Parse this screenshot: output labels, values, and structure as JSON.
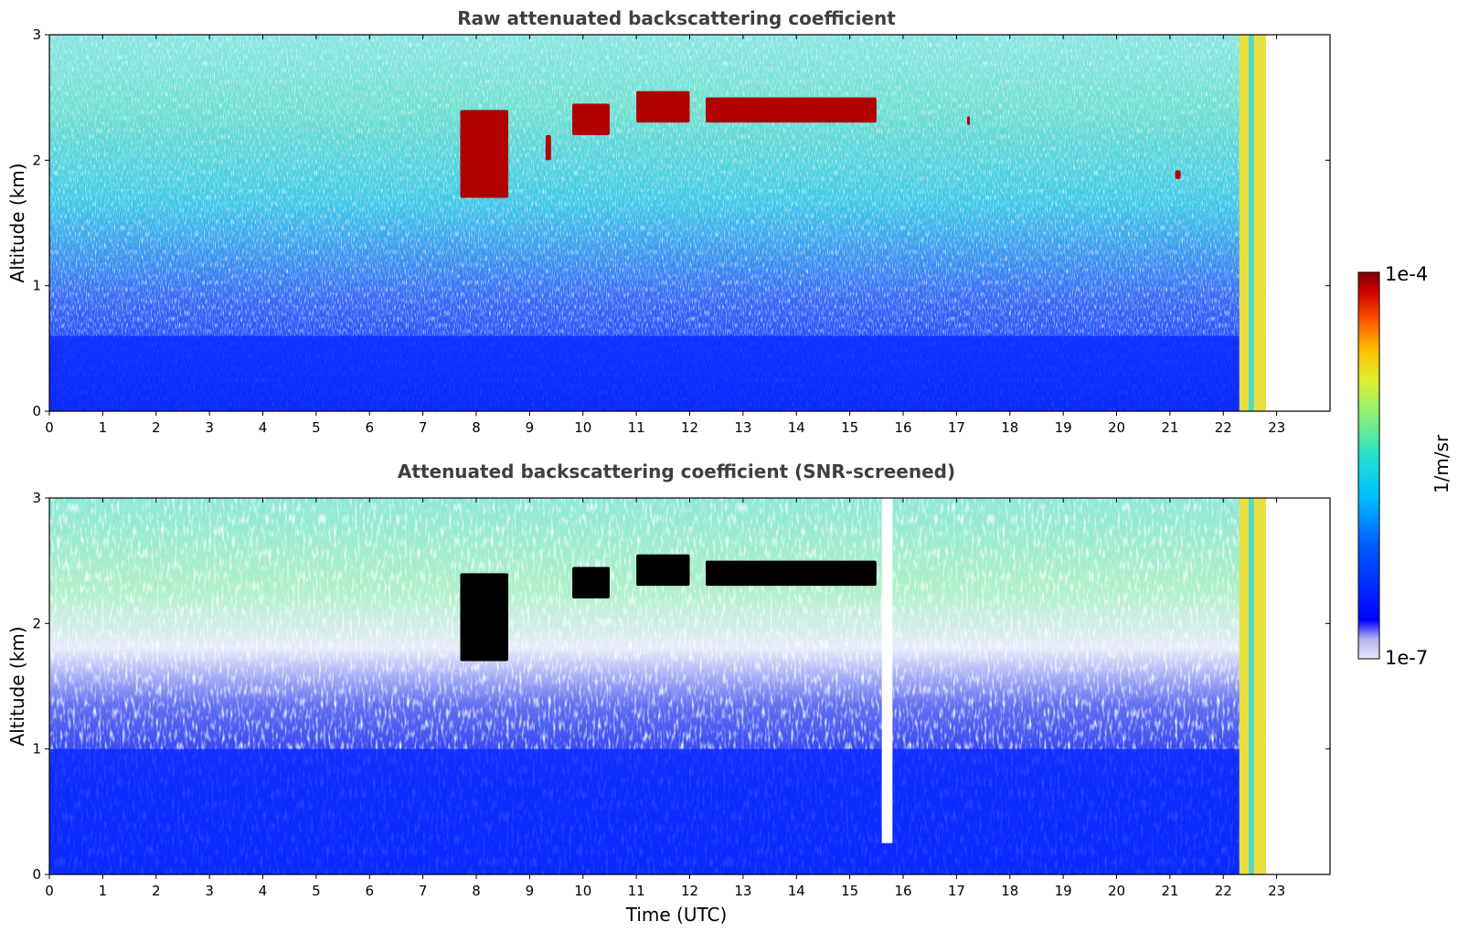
{
  "chart_data": [
    {
      "type": "heatmap",
      "title": "Raw attenuated backscattering coefficient",
      "xlabel": "",
      "ylabel": "Altitude (km)",
      "xlim": [
        0,
        24
      ],
      "ylim": [
        0,
        3
      ],
      "x_ticks": [
        "0",
        "1",
        "2",
        "3",
        "4",
        "5",
        "6",
        "7",
        "8",
        "9",
        "10",
        "11",
        "12",
        "13",
        "14",
        "15",
        "16",
        "17",
        "18",
        "19",
        "20",
        "21",
        "22",
        "23"
      ],
      "y_ticks": [
        "0",
        "1",
        "2",
        "3"
      ],
      "data_extent_hours": [
        0,
        22.8
      ],
      "regions": [
        {
          "feature": "aerosol boundary layer",
          "x": [
            0,
            22.8
          ],
          "y": [
            0,
            0.6
          ],
          "level": "low"
        },
        {
          "feature": "cloud",
          "x": [
            7.7,
            8.6
          ],
          "y": [
            1.7,
            2.4
          ],
          "level": "high"
        },
        {
          "feature": "cloud",
          "x": [
            9.3,
            9.4
          ],
          "y": [
            2.0,
            2.2
          ],
          "level": "high"
        },
        {
          "feature": "cloud",
          "x": [
            9.8,
            10.5
          ],
          "y": [
            2.2,
            2.45
          ],
          "level": "high"
        },
        {
          "feature": "cloud",
          "x": [
            11.0,
            12.0
          ],
          "y": [
            2.3,
            2.55
          ],
          "level": "high"
        },
        {
          "feature": "cloud",
          "x": [
            12.3,
            15.5
          ],
          "y": [
            2.3,
            2.5
          ],
          "level": "high"
        },
        {
          "feature": "cloud",
          "x": [
            17.2,
            17.25
          ],
          "y": [
            2.28,
            2.35
          ],
          "level": "high"
        },
        {
          "feature": "cloud",
          "x": [
            21.1,
            21.2
          ],
          "y": [
            1.85,
            1.92
          ],
          "level": "high"
        },
        {
          "feature": "precipitation/thick cloud",
          "x": [
            22.3,
            22.8
          ],
          "y": [
            0,
            3
          ],
          "level": "high"
        }
      ]
    },
    {
      "type": "heatmap",
      "title": "Attenuated backscattering coefficient (SNR-screened)",
      "xlabel": "Time (UTC)",
      "ylabel": "Altitude (km)",
      "xlim": [
        0,
        24
      ],
      "ylim": [
        0,
        3
      ],
      "x_ticks": [
        "0",
        "1",
        "2",
        "3",
        "4",
        "5",
        "6",
        "7",
        "8",
        "9",
        "10",
        "11",
        "12",
        "13",
        "14",
        "15",
        "16",
        "17",
        "18",
        "19",
        "20",
        "21",
        "22",
        "23"
      ],
      "y_ticks": [
        "0",
        "1",
        "2",
        "3"
      ],
      "data_extent_hours": [
        0,
        22.8
      ],
      "regions": [
        {
          "feature": "aerosol boundary layer",
          "x": [
            0,
            22.8
          ],
          "y": [
            0,
            1.0
          ],
          "level": "low"
        },
        {
          "feature": "cloud",
          "x": [
            7.7,
            8.6
          ],
          "y": [
            1.7,
            2.4
          ],
          "level": "saturated"
        },
        {
          "feature": "cloud",
          "x": [
            9.8,
            10.5
          ],
          "y": [
            2.2,
            2.45
          ],
          "level": "saturated"
        },
        {
          "feature": "cloud",
          "x": [
            11.0,
            12.0
          ],
          "y": [
            2.3,
            2.55
          ],
          "level": "saturated"
        },
        {
          "feature": "cloud",
          "x": [
            12.3,
            15.5
          ],
          "y": [
            2.3,
            2.5
          ],
          "level": "saturated"
        },
        {
          "feature": "screened gap",
          "x": [
            15.6,
            15.8
          ],
          "y": [
            0.25,
            3
          ],
          "level": "none"
        },
        {
          "feature": "precipitation/thick cloud",
          "x": [
            22.3,
            22.8
          ],
          "y": [
            0,
            3
          ],
          "level": "high"
        }
      ]
    }
  ],
  "colorbar": {
    "label": "1/m/sr",
    "max_label": "1e-4",
    "min_label": "1e-7",
    "scale": "log",
    "colormap": "jet",
    "colors": [
      "#e8e8f8",
      "#b4b4f0",
      "#0000ff",
      "#0050ff",
      "#00a0ff",
      "#00e0e0",
      "#40f0a0",
      "#a0f060",
      "#f0f030",
      "#ffc000",
      "#ff6000",
      "#e01000",
      "#800000"
    ]
  }
}
